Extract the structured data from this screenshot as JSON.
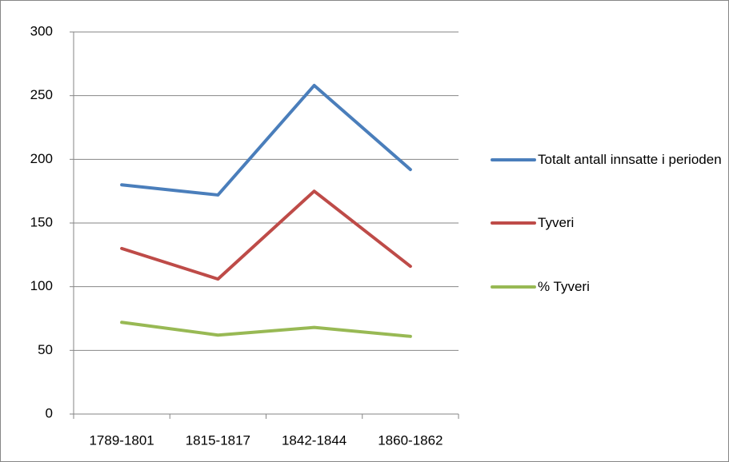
{
  "chart_data": {
    "type": "line",
    "categories": [
      "1789-1801",
      "1815-1817",
      "1842-1844",
      "1860-1862"
    ],
    "series": [
      {
        "name": "Totalt antall innsatte i perioden",
        "color": "#4a7ebb",
        "values": [
          180,
          172,
          258,
          192
        ]
      },
      {
        "name": "Tyveri",
        "color": "#be4b48",
        "values": [
          130,
          106,
          175,
          116
        ]
      },
      {
        "name": "% Tyveri",
        "color": "#98b954",
        "values": [
          72,
          62,
          68,
          61
        ]
      }
    ],
    "ylim": [
      0,
      300
    ],
    "yticks": [
      0,
      50,
      100,
      150,
      200,
      250,
      300
    ],
    "grid": true,
    "legend": "right"
  }
}
